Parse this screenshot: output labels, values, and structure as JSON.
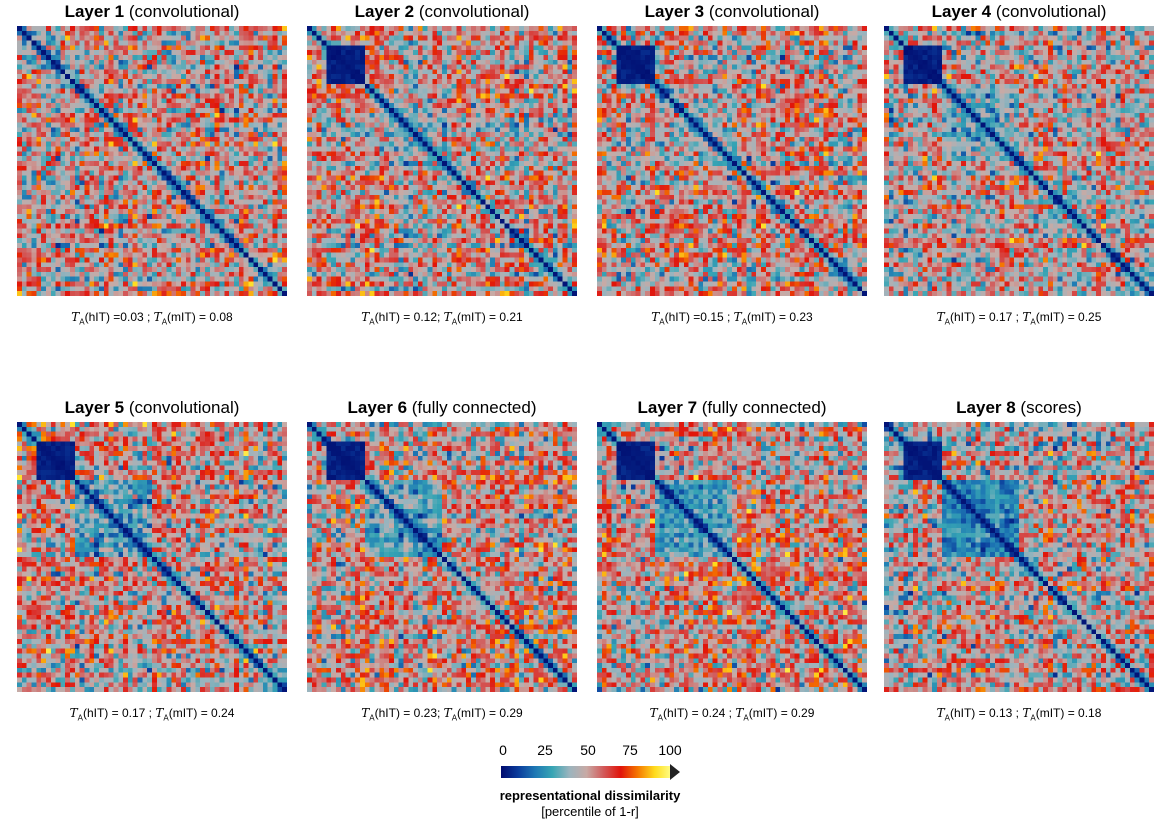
{
  "chart_data": {
    "type": "heatmap",
    "matrix_size": 56,
    "colormap": [
      "#000a6e",
      "#0a3c9c",
      "#1e78b4",
      "#37a5b4",
      "#9bb4be",
      "#c8aaa5",
      "#d25a5a",
      "#e1140a",
      "#f57800",
      "#ffdc1e",
      "#ffff8c"
    ],
    "panels": [
      {
        "title_bold": "Layer 1",
        "title_rest": " (convolutional)",
        "tau_hIT": "=0.03 ;",
        "tau_mIT": "= 0.08"
      },
      {
        "title_bold": "Layer 2",
        "title_rest": " (convolutional)",
        "tau_hIT": "= 0.12;",
        "tau_mIT": "= 0.21"
      },
      {
        "title_bold": "Layer 3",
        "title_rest": " (convolutional)",
        "tau_hIT": "=0.15 ;",
        "tau_mIT": "= 0.23"
      },
      {
        "title_bold": "Layer 4",
        "title_rest": " (convolutional)",
        "tau_hIT": "= 0.17 ;",
        "tau_mIT": "= 0.25"
      },
      {
        "title_bold": "Layer 5",
        "title_rest": " (convolutional)",
        "tau_hIT": "= 0.17 ;",
        "tau_mIT": "= 0.24"
      },
      {
        "title_bold": "Layer 6",
        "title_rest": " (fully connected)",
        "tau_hIT": "= 0.23;",
        "tau_mIT": "= 0.29"
      },
      {
        "title_bold": "Layer 7",
        "title_rest": " (fully connected)",
        "tau_hIT": "= 0.24 ;",
        "tau_mIT": "= 0.29"
      },
      {
        "title_bold": "Layer 8",
        "title_rest": " (scores)",
        "tau_hIT": "= 0.13 ;",
        "tau_mIT": "= 0.18"
      }
    ],
    "stat_labels": {
      "tau_symbol": "T",
      "tau_sub": "A",
      "hit": "(hIT) ",
      "mit": "(mIT) "
    },
    "colorbar": {
      "ticks": [
        "0",
        "25",
        "50",
        "75",
        "100"
      ],
      "label": "representational dissimilarity",
      "sublabel": "[percentile of 1-r]"
    }
  }
}
